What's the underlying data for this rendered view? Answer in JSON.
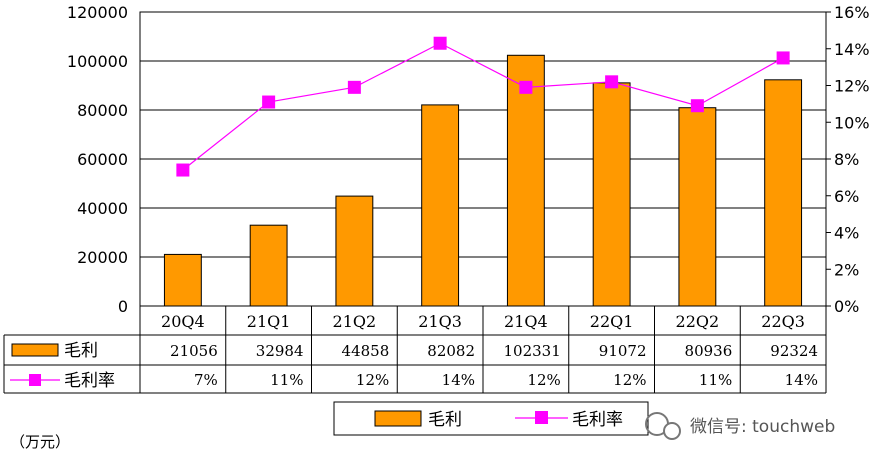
{
  "chart_data": {
    "type": "bar",
    "categories": [
      "20Q4",
      "21Q1",
      "21Q2",
      "21Q3",
      "21Q4",
      "22Q1",
      "22Q2",
      "22Q3"
    ],
    "series": [
      {
        "name": "毛利",
        "type": "bar",
        "axis": "left",
        "values": [
          21056,
          32984,
          44858,
          82082,
          102331,
          91072,
          80936,
          92324
        ],
        "labels": [
          "21056",
          "32984",
          "44858",
          "82082",
          "102331",
          "91072",
          "80936",
          "92324"
        ],
        "color": "#FF9900"
      },
      {
        "name": "毛利率",
        "type": "line",
        "axis": "right",
        "values": [
          7.4,
          11.1,
          11.9,
          14.3,
          11.9,
          12.2,
          10.9,
          13.5
        ],
        "labels": [
          "7%",
          "11%",
          "12%",
          "14%",
          "12%",
          "12%",
          "11%",
          "14%"
        ],
        "color": "#FF00FF"
      }
    ],
    "left_axis": {
      "ylim": [
        0,
        120000
      ],
      "ticks": [
        0,
        20000,
        40000,
        60000,
        80000,
        100000,
        120000
      ],
      "tick_labels": [
        "0",
        "20000",
        "40000",
        "60000",
        "80000",
        "100000",
        "120000"
      ]
    },
    "right_axis": {
      "ylim": [
        0,
        16
      ],
      "ticks": [
        0,
        2,
        4,
        6,
        8,
        10,
        12,
        14,
        16
      ],
      "tick_labels": [
        "0%",
        "2%",
        "4%",
        "6%",
        "8%",
        "10%",
        "12%",
        "14%",
        "16%"
      ]
    },
    "grid": true,
    "legend": {
      "placement": "bottom",
      "entries": [
        "毛利",
        "毛利率"
      ]
    },
    "unit_label": "（万元）"
  },
  "watermark": {
    "text": "微信号: touchweb",
    "icon": "wechat-icon"
  }
}
